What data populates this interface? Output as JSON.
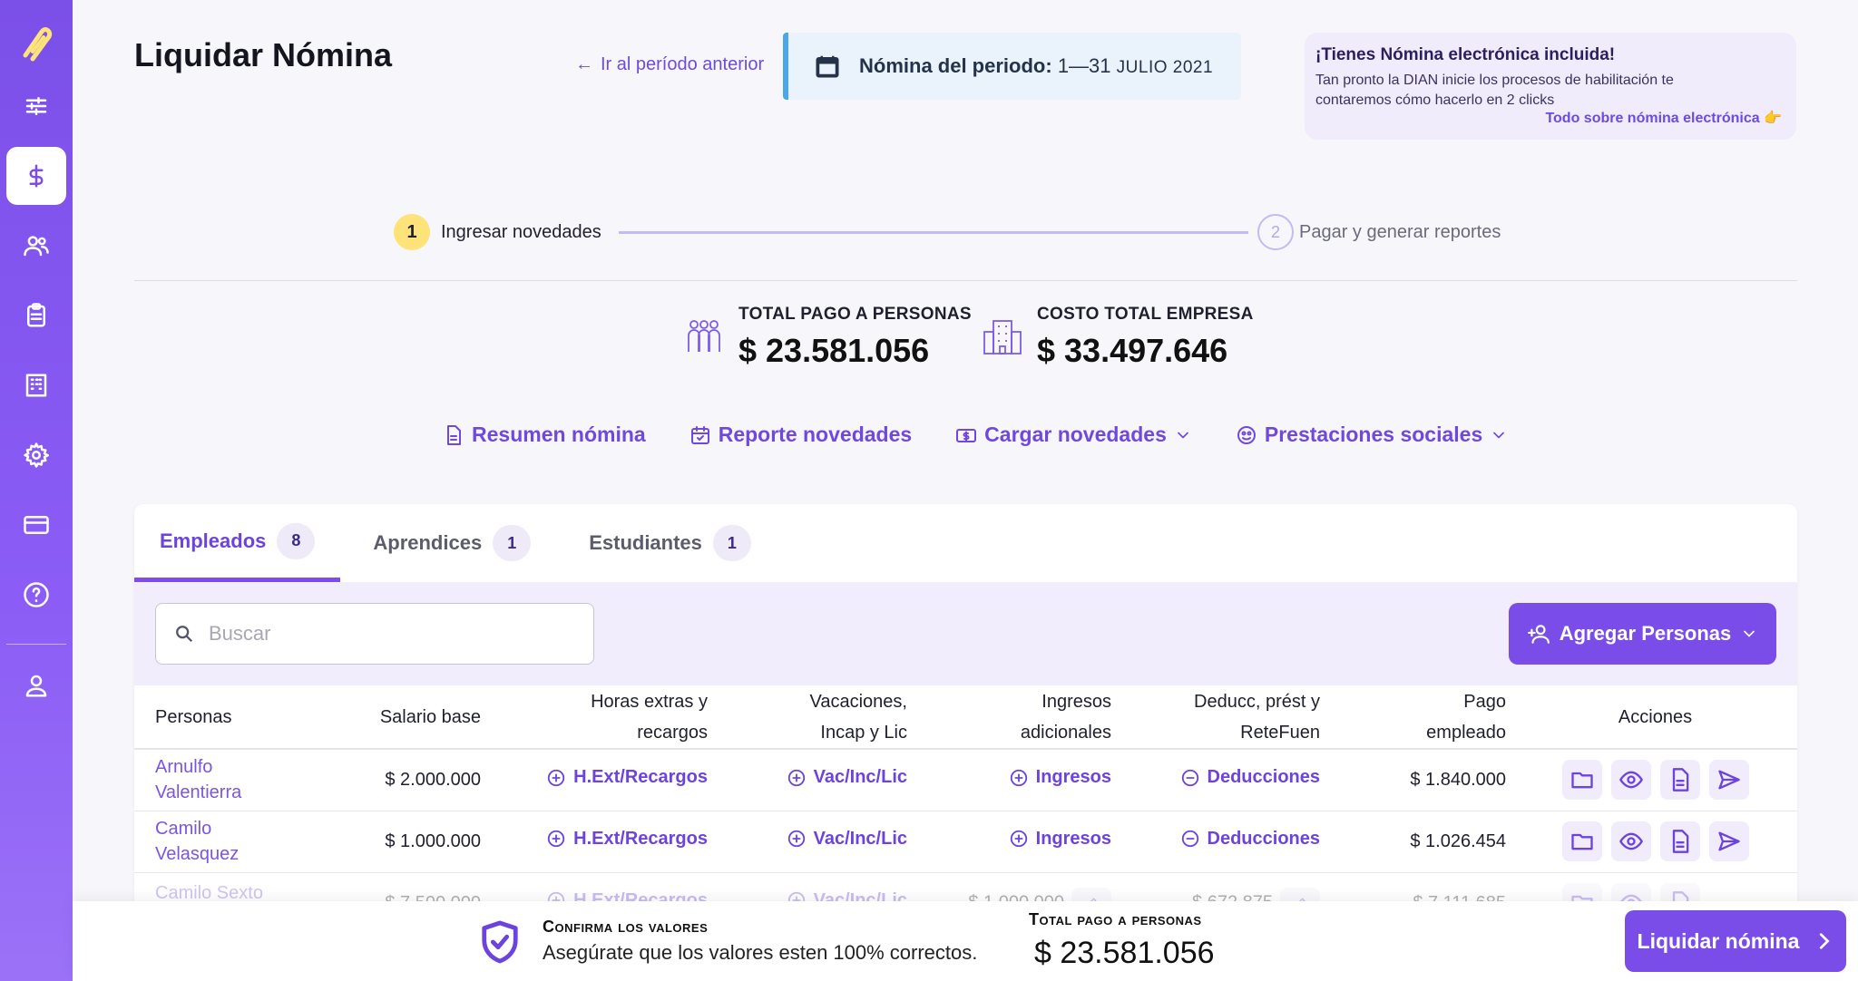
{
  "sidebar": {
    "items": [
      "sliders-icon",
      "dollar-icon",
      "users-icon",
      "clipboard-icon",
      "building-icon",
      "gear-icon",
      "credit-card-icon",
      "help-icon",
      "user-icon"
    ],
    "active": "dollar-icon"
  },
  "header": {
    "title": "Liquidar Nómina",
    "prev_link": "Ir al período anterior",
    "period_label": "Nómina del periodo:",
    "period_range": "1—31",
    "period_month": "JULIO 2021"
  },
  "promo": {
    "title": "¡Tienes Nómina electrónica incluida!",
    "text": "Tan pronto la DIAN inicie los procesos de habilitación te contaremos cómo hacerlo en 2 clicks",
    "link": "Todo sobre nómina electrónica 👉"
  },
  "stepper": {
    "step1_num": "1",
    "step1_label": "Ingresar novedades",
    "step2_num": "2",
    "step2_label": "Pagar y generar reportes"
  },
  "totals": {
    "pago_label": "TOTAL PAGO A PERSONAS",
    "pago_value": "$ 23.581.056",
    "costo_label": "COSTO TOTAL EMPRESA",
    "costo_value": "$ 33.497.646"
  },
  "actions": {
    "resumen": "Resumen nómina",
    "reporte": "Reporte novedades",
    "cargar": "Cargar novedades",
    "prestaciones": "Prestaciones sociales"
  },
  "tabs": [
    {
      "label": "Empleados",
      "count": "8"
    },
    {
      "label": "Aprendices",
      "count": "1"
    },
    {
      "label": "Estudiantes",
      "count": "1"
    }
  ],
  "toolbar": {
    "search_placeholder": "Buscar",
    "add_label": "Agregar Personas"
  },
  "table": {
    "headers": {
      "personas": "Personas",
      "salario": "Salario base",
      "he_1": "Horas extras y",
      "he_2": "recargos",
      "vac_1": "Vacaciones,",
      "vac_2": "Incap y Lic",
      "ing_1": "Ingresos",
      "ing_2": "adicionales",
      "ded_1": "Deducc, prést y",
      "ded_2": "ReteFuen",
      "pago_1": "Pago",
      "pago_2": "empleado",
      "acciones": "Acciones"
    },
    "links": {
      "he": "H.Ext/Recargos",
      "vac": "Vac/Inc/Lic",
      "ing": "Ingresos",
      "ded": "Deducciones"
    },
    "rows": [
      {
        "name_1": "Arnulfo",
        "name_2": "Valentierra",
        "salario": "$ 2.000.000",
        "pago": "$ 1.840.000"
      },
      {
        "name_1": "Camilo",
        "name_2": "Velasquez",
        "salario": "$ 1.000.000",
        "pago": "$ 1.026.454"
      },
      {
        "name_1": "Camilo Sexto",
        "salario": "$ 7.500.000",
        "ing": "$ 1.000.000",
        "ded": "$ 672.875",
        "pago": "$ 7.111.685"
      }
    ]
  },
  "footer": {
    "confirm_title": "Confirma los valores",
    "confirm_text": "Asegúrate que los valores esten 100% correctos.",
    "total_label": "Total pago a personas",
    "total_value": "$ 23.581.056",
    "button": "Liquidar nómina"
  },
  "colors": {
    "accent": "#7b4de8",
    "sidebar": "#8b5cf6",
    "step_active": "#fde37a",
    "period_border": "#4aa8e8"
  }
}
